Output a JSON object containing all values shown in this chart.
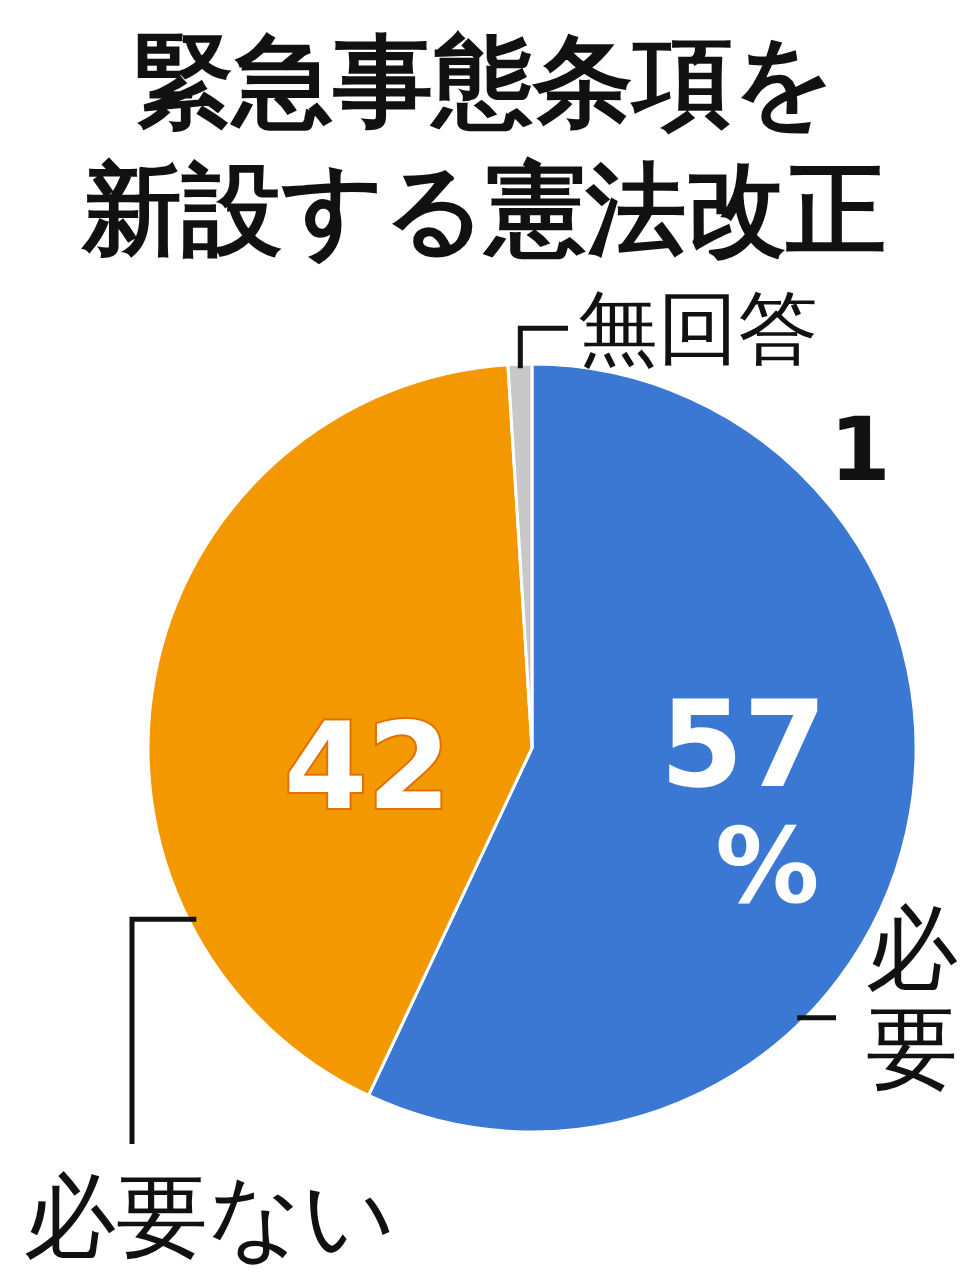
{
  "chart_data": {
    "type": "pie",
    "title": "緊急事態条項を新設する憲法改正",
    "categories": [
      "必要",
      "必要ない",
      "無回答"
    ],
    "values": [
      57,
      42,
      1
    ],
    "colors": [
      "#3a78d4",
      "#f39800",
      "#c8c8c8"
    ],
    "value_labels": [
      "57%",
      "42",
      "1"
    ]
  }
}
